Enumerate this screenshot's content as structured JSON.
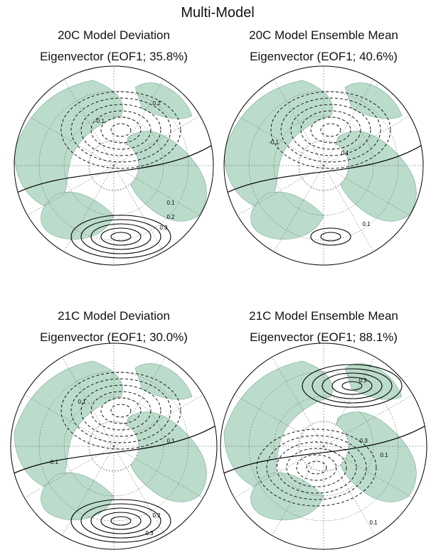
{
  "title": "Multi-Model",
  "panels": [
    {
      "title_line1": "20C Model Deviation",
      "title_line2": "Eigenvector (EOF1; 35.8%)",
      "contour_labels": [
        "0.2",
        "-0.1",
        "0.1",
        "0.2",
        "0.3"
      ]
    },
    {
      "title_line1": "20C Model Ensemble Mean",
      "title_line2": "Eigenvector (EOF1; 40.6%)",
      "contour_labels": [
        "-0.1",
        "0.1",
        "0.1"
      ]
    },
    {
      "title_line1": "21C Model Deviation",
      "title_line2": "Eigenvector (EOF1; 30.0%)",
      "contour_labels": [
        "0.1",
        "0.2",
        "0.3",
        "0.1",
        "-0.1"
      ]
    },
    {
      "title_line1": "21C Model Ensemble Mean",
      "title_line2": "Eigenvector (EOF1; 88.1%)",
      "contour_labels": [
        "0.3",
        "0.1",
        "-0.3",
        "0.1"
      ]
    }
  ]
}
